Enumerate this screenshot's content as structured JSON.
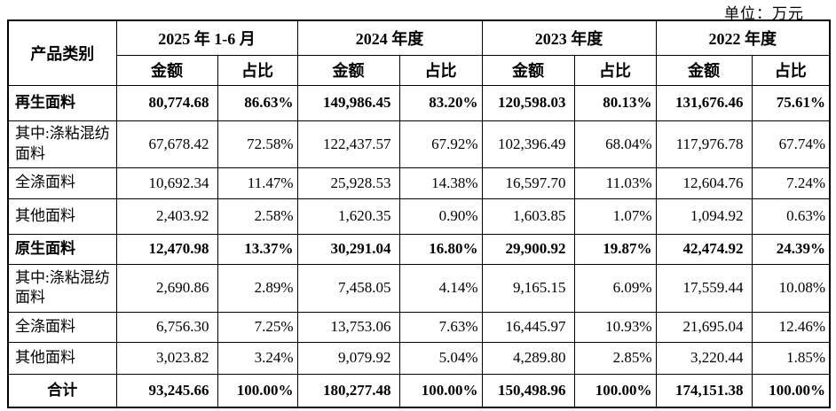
{
  "unit_label": "单位：万元",
  "table": {
    "product_col_header": "产品类别",
    "amount_header": "金额",
    "share_header": "占比",
    "periods": [
      "2025 年 1-6 月",
      "2024 年度",
      "2023 年度",
      "2022 年度"
    ],
    "rows": [
      {
        "name": "再生面料",
        "bold": true,
        "total": false,
        "values": [
          "80,774.68",
          "86.63%",
          "149,986.45",
          "83.20%",
          "120,598.03",
          "80.13%",
          "131,676.46",
          "75.61%"
        ]
      },
      {
        "name": "其中:涤粘混纺面料",
        "bold": false,
        "total": false,
        "values": [
          "67,678.42",
          "72.58%",
          "122,437.57",
          "67.92%",
          "102,396.49",
          "68.04%",
          "117,976.78",
          "67.74%"
        ]
      },
      {
        "name": "全涤面料",
        "bold": false,
        "total": false,
        "values": [
          "10,692.34",
          "11.47%",
          "25,928.53",
          "14.38%",
          "16,597.70",
          "11.03%",
          "12,604.76",
          "7.24%"
        ]
      },
      {
        "name": "其他面料",
        "bold": false,
        "total": false,
        "values": [
          "2,403.92",
          "2.58%",
          "1,620.35",
          "0.90%",
          "1,603.85",
          "1.07%",
          "1,094.92",
          "0.63%"
        ]
      },
      {
        "name": "原生面料",
        "bold": true,
        "total": false,
        "values": [
          "12,470.98",
          "13.37%",
          "30,291.04",
          "16.80%",
          "29,900.92",
          "19.87%",
          "42,474.92",
          "24.39%"
        ]
      },
      {
        "name": "其中:涤粘混纺面料",
        "bold": false,
        "total": false,
        "values": [
          "2,690.86",
          "2.89%",
          "7,458.05",
          "4.14%",
          "9,165.15",
          "6.09%",
          "17,559.44",
          "10.08%"
        ]
      },
      {
        "name": "全涤面料",
        "bold": false,
        "total": false,
        "values": [
          "6,756.30",
          "7.25%",
          "13,753.06",
          "7.63%",
          "16,445.97",
          "10.93%",
          "21,695.04",
          "12.46%"
        ]
      },
      {
        "name": "其他面料",
        "bold": false,
        "total": false,
        "values": [
          "3,023.82",
          "3.24%",
          "9,079.92",
          "5.04%",
          "4,289.80",
          "2.85%",
          "3,220.44",
          "1.85%"
        ]
      },
      {
        "name": "合计",
        "bold": true,
        "total": true,
        "values": [
          "93,245.66",
          "100.00%",
          "180,277.48",
          "100.00%",
          "150,498.96",
          "100.00%",
          "174,151.38",
          "100.00%"
        ]
      }
    ]
  }
}
